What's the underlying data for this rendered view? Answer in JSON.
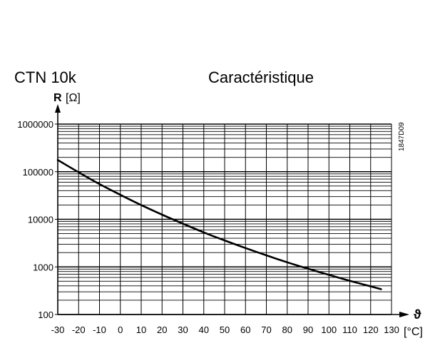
{
  "header": {
    "title_left": "CTN 10k",
    "title_right": "Caractéristique",
    "doc_code": "1847D09"
  },
  "chart_data": {
    "type": "line",
    "title": "Caractéristique",
    "y_axis": {
      "symbol": "R",
      "unit": "[Ω]",
      "scale": "log",
      "ylim": [
        100,
        1000000
      ],
      "tick_labels": [
        "1000000",
        "100000",
        "10000",
        "1000",
        "100"
      ]
    },
    "x_axis": {
      "symbol": "ϑ",
      "unit": "[°C]",
      "xlim": [
        -30,
        130
      ],
      "tick_labels": [
        "-30",
        "-20",
        "-10",
        "0",
        "10",
        "20",
        "30",
        "40",
        "50",
        "60",
        "70",
        "80",
        "90",
        "100",
        "110",
        "120",
        "130"
      ]
    },
    "grid": true,
    "series": [
      {
        "name": "CTN 10k",
        "x": [
          -30,
          -20,
          -10,
          0,
          10,
          20,
          30,
          40,
          50,
          60,
          70,
          80,
          90,
          100,
          110,
          120,
          125
        ],
        "values": [
          176000,
          97000,
          55000,
          32600,
          19900,
          12500,
          8100,
          5300,
          3600,
          2490,
          1750,
          1250,
          915,
          680,
          510,
          390,
          340
        ]
      }
    ],
    "colors": {
      "curve": "#000000",
      "grid": "#000000"
    }
  }
}
